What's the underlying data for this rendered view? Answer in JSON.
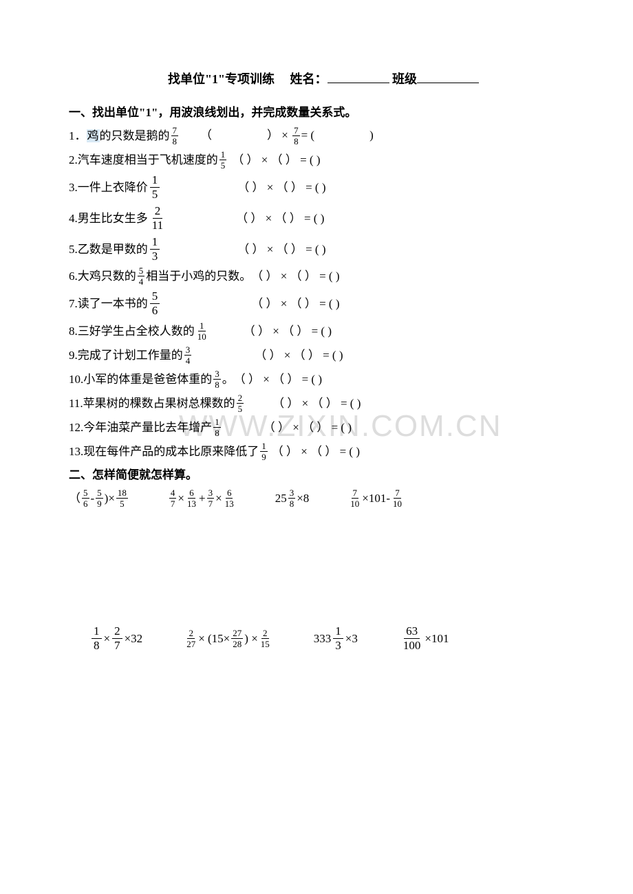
{
  "title": {
    "main": "找单位\"1\"专项训练",
    "name_label": "姓名：",
    "class_label": "班级"
  },
  "section1": {
    "head": "一、找出单位\"1\"，用波浪线划出，并完成数量关系式。",
    "items": [
      {
        "n": "1．",
        "pre": "鸡的只数是鹅的",
        "frac": {
          "n": "7",
          "d": "8"
        },
        "post": "",
        "spacer": 30,
        "tail_pre": "（",
        "tail_mid": "）",
        "mult_sep": " × ",
        "tail_f": {
          "n": "7",
          "d": "8"
        },
        "tail_eq": "= (",
        "tail_end": ")",
        "spacerB": 80,
        "spacerC": 80
      },
      {
        "n": "2.",
        "pre": "汽车速度相当于飞机速度的",
        "frac": {
          "n": "1",
          "d": "5"
        },
        "post": "",
        "spacer": 6,
        "tail": "（        ） × （     ） = (           )"
      },
      {
        "n": "3.",
        "pre": "一件上衣降价",
        "fracL": {
          "n": "1",
          "d": "5"
        },
        "post": "",
        "spacer": 110,
        "tail": "（          ） × （     ） = (           )"
      },
      {
        "n": "4.",
        "pre": "男生比女生多",
        "fracL": {
          "n": "2",
          "d": "11"
        },
        "post": "",
        "spacer": 100,
        "tail": "（          ） × （     ） = (           )"
      },
      {
        "n": "5.",
        "pre": "乙数是甲数的 ",
        "fracL": {
          "n": "1",
          "d": "3"
        },
        "post": "",
        "spacer": 110,
        "tail": "（          ） × （     ） = (           )"
      },
      {
        "n": "6.",
        "pre": "大鸡只数的",
        "frac": {
          "n": "5",
          "d": "4"
        },
        "post": "相当于小鸡的只数。",
        "spacer": 0,
        "tail": "（        ） × （     ） = (          )"
      },
      {
        "n": "7.",
        "pre": "读了一本书的 ",
        "fracL": {
          "n": "5",
          "d": "6"
        },
        "post": "",
        "spacer": 130,
        "tail": "（          ） × （     ） = (           )"
      },
      {
        "n": "8.",
        "pre": "三好学生占全校人数的",
        "frac": {
          "n": "1",
          "d": "10"
        },
        "post": "",
        "spacer": 50,
        "tail": "（          ） × （     ） = (           )"
      },
      {
        "n": "9.",
        "pre": "完成了计划工作量的 ",
        "frac": {
          "n": "3",
          "d": "4"
        },
        "post": "",
        "spacer": 90,
        "tail": "（          ） × （     ） = (           )"
      },
      {
        "n": "10.",
        "pre": "小军的体重是爸爸体重的",
        "frac": {
          "n": "3",
          "d": "8"
        },
        "post": " 。",
        "spacer": 0,
        "tail": "（          ） × （     ） = (           )"
      },
      {
        "n": "11.",
        "pre": "苹果树的棵数占果树总棵数的",
        "frac": {
          "n": "2",
          "d": "5"
        },
        "post": "",
        "spacer": 40,
        "tail": "（        ） × （     ） = (           )"
      },
      {
        "n": "12.",
        "pre": "今年油菜产量比去年增产",
        "frac": {
          "n": "1",
          "d": "8"
        },
        "post": "",
        "spacer": 60,
        "tail": "（          ） × （     ） = (           )"
      },
      {
        "n": "13.",
        "pre": "现在每件产品的成本比原来降低了",
        "frac": {
          "n": "1",
          "d": "9"
        },
        "post": "",
        "spacer": 4,
        "tail": "（          ） × （     ） = (           )"
      }
    ]
  },
  "section2": {
    "head": "二、怎样简便就怎样算。",
    "row1": [
      {
        "parts": [
          "（"
        ],
        "f1": {
          "n": "5",
          "d": "6"
        },
        "mid1": "- ",
        "f2": {
          "n": "5",
          "d": "9"
        },
        "mid2": ")× ",
        "f3": {
          "n": "18",
          "d": "5"
        }
      },
      {
        "f1": {
          "n": "4",
          "d": "7"
        },
        "mid1": "×",
        "f2": {
          "n": "6",
          "d": "13"
        },
        "mid2": "+ ",
        "f3": {
          "n": "3",
          "d": "7"
        },
        "mid3": "×",
        "f4": {
          "n": "6",
          "d": "13"
        }
      },
      {
        "pre": "25",
        "f1": {
          "n": "3",
          "d": "8"
        },
        "mid1": "×8"
      },
      {
        "f1": {
          "n": "7",
          "d": "10"
        },
        "mid1": "×101- ",
        "f2": {
          "n": "7",
          "d": "10"
        }
      }
    ],
    "row2": [
      {
        "fL1": {
          "n": "1",
          "d": "8"
        },
        "mid1": "×",
        "fL2": {
          "n": "2",
          "d": "7"
        },
        "mid2": "×32"
      },
      {
        "f1": {
          "n": "2",
          "d": "27"
        },
        "mid1": "× (15×",
        "f2": {
          "n": "27",
          "d": "28"
        },
        "mid2": ") ×",
        "f3": {
          "n": "2",
          "d": "15"
        }
      },
      {
        "pre": "333",
        "fL1": {
          "n": "1",
          "d": "3"
        },
        "mid1": "×3"
      },
      {
        "fL1": {
          "n": "63",
          "d": "100"
        },
        "mid1": "×101"
      }
    ]
  },
  "watermark": "WWW.ZIXIN.COM.CN"
}
